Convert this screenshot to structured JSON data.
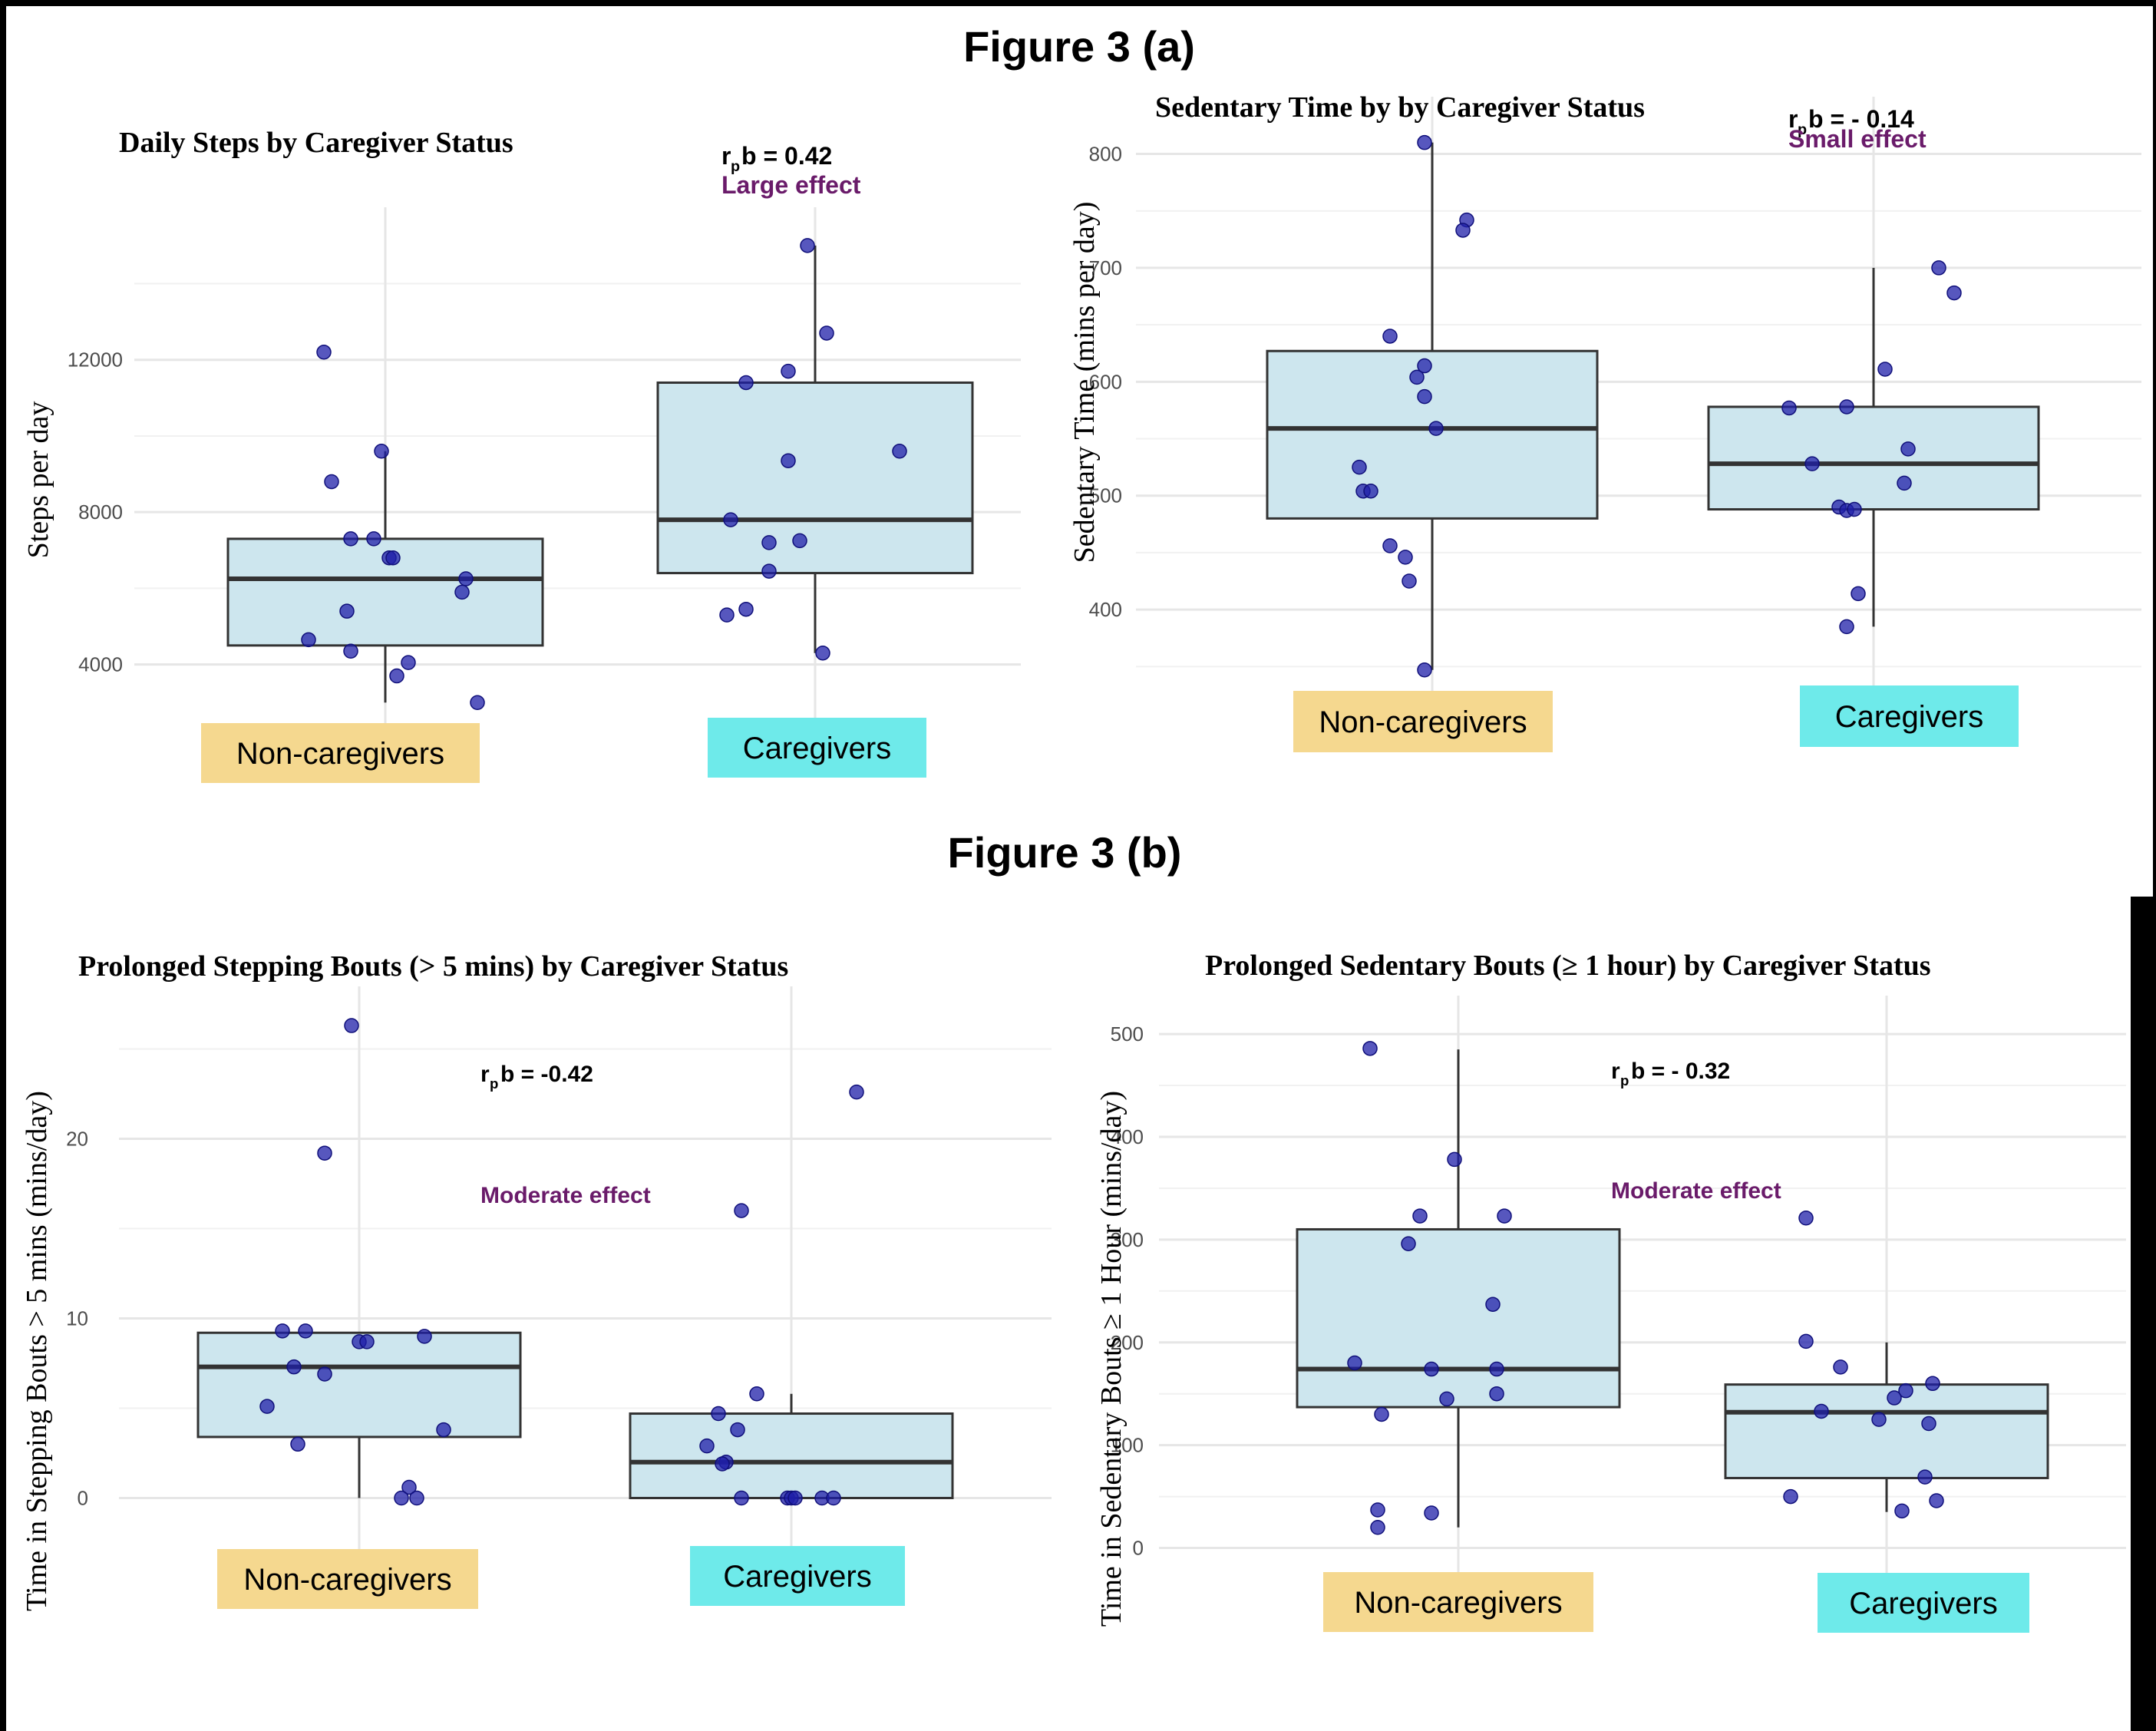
{
  "figure_a_title": "Figure 3 (a)",
  "figure_b_title": "Figure 3 (b)",
  "colors": {
    "box_fill": "#cde6ee",
    "box_stroke": "#333333",
    "point": "#1f1fa8",
    "effect_text": "#6a1b6a",
    "noncaregiver_label_bg": "#f5d88f",
    "caregiver_label_bg": "#6eeaea",
    "grid": "#e6e6e6"
  },
  "chart_data": [
    {
      "type": "box",
      "title": "Daily Steps by Caregiver Status",
      "ylabel": "Steps per day",
      "ylim": [
        2300,
        15400
      ],
      "yticks": [
        4000,
        8000,
        12000
      ],
      "ytick_labels": [
        "4000",
        "8000",
        "12000"
      ],
      "minor_gridlines": [
        6000,
        10000,
        14000
      ],
      "categories": [
        "Non-caregivers",
        "Caregivers"
      ],
      "annotation": {
        "text": "b = 0.42",
        "effect": "Large effect"
      },
      "boxes": [
        {
          "q1": 4500,
          "median": 6250,
          "q3": 7300,
          "whisker_low": 3000,
          "whisker_high": 9600
        },
        {
          "q1": 6400,
          "median": 7800,
          "q3": 11400,
          "whisker_low": 4300,
          "whisker_high": 15000
        }
      ],
      "points": [
        [
          [
            -0.16,
            12200
          ],
          [
            -0.14,
            8800
          ],
          [
            -0.01,
            9600
          ],
          [
            -0.09,
            7300
          ],
          [
            -0.03,
            7300
          ],
          [
            0.01,
            6800
          ],
          [
            0.02,
            6800
          ],
          [
            0.21,
            6250
          ],
          [
            0.2,
            5900
          ],
          [
            -0.1,
            5400
          ],
          [
            -0.2,
            4650
          ],
          [
            -0.09,
            4350
          ],
          [
            0.06,
            4050
          ],
          [
            0.03,
            3700
          ],
          [
            0.24,
            3000
          ]
        ],
        [
          [
            -0.02,
            15000
          ],
          [
            0.03,
            12700
          ],
          [
            -0.18,
            11400
          ],
          [
            -0.07,
            11700
          ],
          [
            -0.07,
            9350
          ],
          [
            0.22,
            9600
          ],
          [
            -0.22,
            7800
          ],
          [
            -0.12,
            7200
          ],
          [
            -0.04,
            7250
          ],
          [
            -0.12,
            6450
          ],
          [
            -0.18,
            5450
          ],
          [
            -0.23,
            5300
          ],
          [
            0.02,
            4300
          ]
        ]
      ]
    },
    {
      "type": "box",
      "title": "Sedentary Time by by Caregiver Status",
      "ylabel": "Sedentary Time (mins per day)",
      "ylim": [
        330,
        830
      ],
      "yticks": [
        400,
        500,
        600,
        700,
        800
      ],
      "ytick_labels": [
        "400",
        "500",
        "600",
        "700",
        "800"
      ],
      "minor_gridlines": [
        350,
        450,
        550,
        650,
        750
      ],
      "categories": [
        "Non-caregivers",
        "Caregivers"
      ],
      "annotation": {
        "text": "b = - 0.14",
        "effect": "Small effect"
      },
      "boxes": [
        {
          "q1": 480,
          "median": 559,
          "q3": 627,
          "whisker_low": 347,
          "whisker_high": 810
        },
        {
          "q1": 488,
          "median": 528,
          "q3": 578,
          "whisker_low": 385,
          "whisker_high": 700
        }
      ],
      "points": [
        [
          [
            -0.02,
            810
          ],
          [
            0.09,
            742
          ],
          [
            0.08,
            733
          ],
          [
            -0.11,
            640
          ],
          [
            -0.02,
            614
          ],
          [
            -0.04,
            604
          ],
          [
            -0.02,
            587
          ],
          [
            0.01,
            559
          ],
          [
            -0.19,
            525
          ],
          [
            -0.18,
            504
          ],
          [
            -0.16,
            504
          ],
          [
            -0.11,
            456
          ],
          [
            -0.07,
            446
          ],
          [
            -0.06,
            425
          ],
          [
            -0.02,
            347
          ]
        ],
        [
          [
            -0.22,
            577
          ],
          [
            -0.07,
            578
          ],
          [
            0.03,
            611
          ],
          [
            0.17,
            700
          ],
          [
            0.21,
            678
          ],
          [
            -0.16,
            528
          ],
          [
            0.09,
            541
          ],
          [
            0.08,
            511
          ],
          [
            -0.09,
            490
          ],
          [
            -0.07,
            487
          ],
          [
            -0.05,
            488
          ],
          [
            -0.04,
            414
          ],
          [
            -0.07,
            385
          ]
        ]
      ]
    },
    {
      "type": "box",
      "title": "Prolonged Stepping Bouts (> 5 mins) by Caregiver Status",
      "ylabel": "Time in Stepping Bouts > 5 mins (mins/day)",
      "ylim": [
        -2.5,
        27.2
      ],
      "yticks": [
        0,
        10,
        20
      ],
      "ytick_labels": [
        "0",
        "10",
        "20"
      ],
      "minor_gridlines": [
        5,
        15,
        25
      ],
      "categories": [
        "Non-caregivers",
        "Caregivers"
      ],
      "annotation": {
        "text": "b = -0.42",
        "effect": "Moderate effect"
      },
      "boxes": [
        {
          "q1": 3.4,
          "median": 7.3,
          "q3": 9.2,
          "whisker_low": 0,
          "whisker_high": 9.2
        },
        {
          "q1": 0,
          "median": 2.0,
          "q3": 4.7,
          "whisker_low": 0,
          "whisker_high": 5.8
        }
      ],
      "points": [
        [
          [
            -0.02,
            26.3
          ],
          [
            -0.09,
            19.2
          ],
          [
            -0.2,
            9.3
          ],
          [
            -0.14,
            9.3
          ],
          [
            0.0,
            8.7
          ],
          [
            0.02,
            8.7
          ],
          [
            0.17,
            9.0
          ],
          [
            -0.17,
            7.3
          ],
          [
            -0.09,
            6.9
          ],
          [
            -0.24,
            5.1
          ],
          [
            0.22,
            3.8
          ],
          [
            -0.16,
            3.0
          ],
          [
            0.13,
            0.6
          ],
          [
            0.11,
            0
          ],
          [
            0.15,
            0
          ]
        ],
        [
          [
            0.17,
            22.6
          ],
          [
            -0.13,
            16.0
          ],
          [
            -0.19,
            4.7
          ],
          [
            -0.09,
            5.8
          ],
          [
            -0.14,
            3.8
          ],
          [
            -0.22,
            2.9
          ],
          [
            -0.17,
            2.0
          ],
          [
            -0.18,
            1.9
          ],
          [
            -0.13,
            0
          ],
          [
            -0.01,
            0
          ],
          [
            0.0,
            0
          ],
          [
            0.01,
            0
          ],
          [
            0.08,
            0
          ],
          [
            0.11,
            0
          ]
        ]
      ]
    },
    {
      "type": "box",
      "title": "Prolonged Sedentary Bouts (≥ 1 hour) by Caregiver Status",
      "ylabel": "Time in Sedentary Bouts ≥ 1 Hour (mins/day)",
      "ylim": [
        -25,
        515
      ],
      "yticks": [
        0,
        100,
        200,
        300,
        400,
        500
      ],
      "ytick_labels": [
        "0",
        "100",
        "200",
        "300",
        "400",
        "500"
      ],
      "minor_gridlines": [
        50,
        150,
        250,
        350,
        450
      ],
      "categories": [
        "Non-caregivers",
        "Caregivers"
      ],
      "annotation": {
        "text": "b = - 0.32",
        "effect": "Moderate effect"
      },
      "boxes": [
        {
          "q1": 137,
          "median": 174,
          "q3": 310,
          "whisker_low": 20,
          "whisker_high": 485
        },
        {
          "q1": 68,
          "median": 132,
          "q3": 159,
          "whisker_low": 35,
          "whisker_high": 200
        }
      ],
      "points": [
        [
          [
            -0.23,
            486
          ],
          [
            -0.01,
            378
          ],
          [
            -0.1,
            323
          ],
          [
            0.12,
            323
          ],
          [
            -0.13,
            296
          ],
          [
            0.09,
            237
          ],
          [
            -0.27,
            180
          ],
          [
            -0.07,
            174
          ],
          [
            0.1,
            174
          ],
          [
            -0.03,
            145
          ],
          [
            0.1,
            150
          ],
          [
            -0.2,
            130
          ],
          [
            -0.21,
            37
          ],
          [
            -0.21,
            20
          ],
          [
            -0.07,
            34
          ]
        ],
        [
          [
            -0.21,
            321
          ],
          [
            -0.21,
            201
          ],
          [
            -0.12,
            176
          ],
          [
            -0.17,
            133
          ],
          [
            -0.02,
            125
          ],
          [
            0.12,
            160
          ],
          [
            0.11,
            121
          ],
          [
            0.05,
            153
          ],
          [
            0.02,
            146
          ],
          [
            0.1,
            69
          ],
          [
            -0.25,
            50
          ],
          [
            0.04,
            36
          ],
          [
            0.13,
            46
          ]
        ]
      ]
    }
  ]
}
